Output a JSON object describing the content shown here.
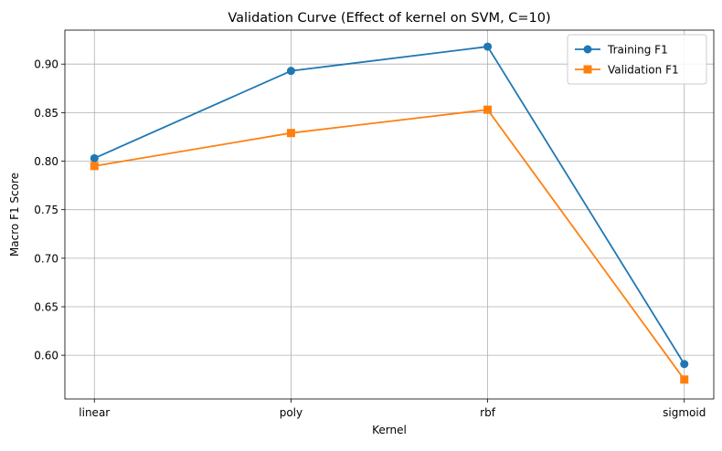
{
  "chart_data": {
    "type": "line",
    "title": "Validation Curve (Effect of kernel on SVM, C=10)",
    "xlabel": "Kernel",
    "ylabel": "Macro F1 Score",
    "categories": [
      "linear",
      "poly",
      "rbf",
      "sigmoid"
    ],
    "ylim": [
      0.555,
      0.935
    ],
    "yticks": [
      0.6,
      0.65,
      0.7,
      0.75,
      0.8,
      0.85,
      0.9
    ],
    "ytick_labels": [
      "0.60",
      "0.65",
      "0.70",
      "0.75",
      "0.80",
      "0.85",
      "0.90"
    ],
    "grid": true,
    "legend_position": "top-right",
    "series": [
      {
        "name": "Training F1",
        "values": [
          0.803,
          0.893,
          0.918,
          0.591
        ],
        "color": "#1f77b4",
        "marker": "circle"
      },
      {
        "name": "Validation F1",
        "values": [
          0.795,
          0.829,
          0.853,
          0.575
        ],
        "color": "#ff7f0e",
        "marker": "square"
      }
    ]
  }
}
